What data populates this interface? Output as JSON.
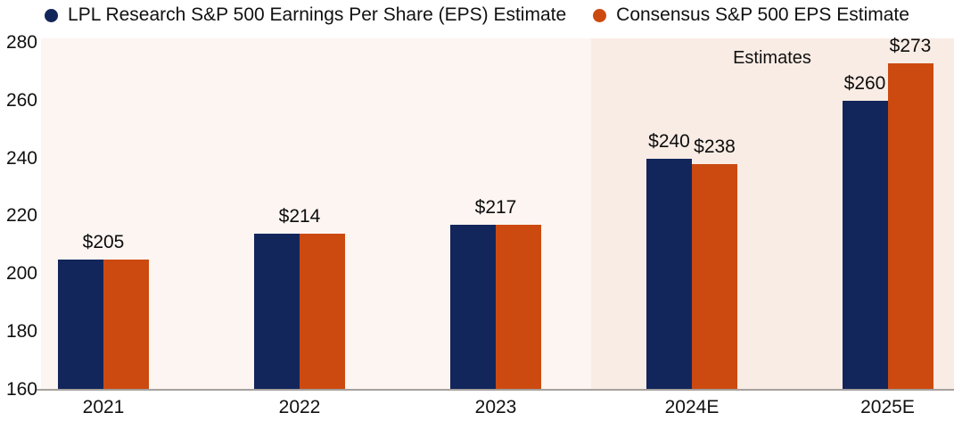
{
  "chart_data": {
    "type": "bar",
    "title": "",
    "categories": [
      "2021",
      "2022",
      "2023",
      "2024E",
      "2025E"
    ],
    "series": [
      {
        "name": "LPL Research S&P 500 Earnings Per Share (EPS) Estimate",
        "color": "#13265b",
        "values": [
          205,
          214,
          217,
          240,
          260
        ]
      },
      {
        "name": "Consensus S&P 500 EPS Estimate",
        "color": "#cc4a10",
        "values": [
          205,
          214,
          217,
          238,
          273
        ]
      }
    ],
    "bar_labels": [
      [
        "$205"
      ],
      [
        "$214"
      ],
      [
        "$217"
      ],
      [
        "$240",
        "$238"
      ],
      [
        "$260",
        "$273"
      ]
    ],
    "yticks": [
      280,
      260,
      240,
      220,
      200,
      180,
      160
    ],
    "ylim": [
      160,
      280
    ],
    "xlabel": "",
    "ylabel": "",
    "grid": false,
    "legend_position": "top",
    "annotations": [
      {
        "text": "Estimates",
        "applies_to": [
          "2024E",
          "2025E"
        ]
      }
    ],
    "colors": {
      "plot_bg": "#fcf5f2",
      "estimates_bg": "#f9ece5",
      "axis_line": "#a5a19e",
      "label_text": "#0d0d0d"
    }
  }
}
